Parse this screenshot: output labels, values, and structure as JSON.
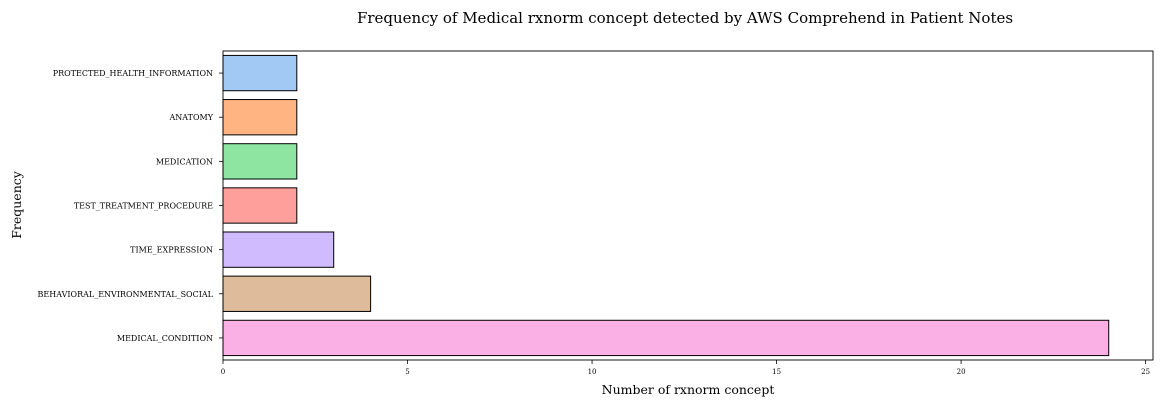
{
  "chart_data": {
    "type": "bar",
    "orientation": "horizontal",
    "title": "Frequency of Medical rxnorm concept detected by AWS Comprehend in Patient Notes",
    "xlabel": "Number of rxnorm concept",
    "ylabel": "Frequency",
    "categories": [
      "PROTECTED_HEALTH_INFORMATION",
      "ANATOMY",
      "MEDICATION",
      "TEST_TREATMENT_PROCEDURE",
      "TIME_EXPRESSION",
      "BEHAVIORAL_ENVIRONMENTAL_SOCIAL",
      "MEDICAL_CONDITION"
    ],
    "values": [
      2,
      2,
      2,
      2,
      3,
      4,
      24
    ],
    "colors": [
      "#a1c9f4",
      "#ffb482",
      "#8de5a1",
      "#ff9f9b",
      "#d0bbff",
      "#debb9b",
      "#fab0e4"
    ],
    "xlim": [
      0,
      25.2
    ],
    "xticks": [
      0,
      5,
      10,
      15,
      20,
      25
    ],
    "grid": false,
    "legend": "none"
  }
}
